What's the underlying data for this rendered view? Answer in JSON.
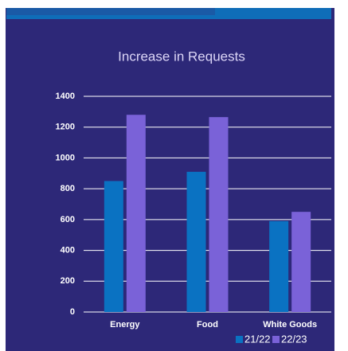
{
  "chart_data": {
    "type": "bar",
    "title": "Increase in Requests",
    "categories": [
      "Energy",
      "Food",
      "White Goods"
    ],
    "series": [
      {
        "name": "21/22",
        "color": "#0a72c2",
        "values": [
          850,
          910,
          590
        ]
      },
      {
        "name": "22/23",
        "color": "#7a62d8",
        "values": [
          1280,
          1265,
          650
        ]
      }
    ],
    "ylim": [
      0,
      1400
    ],
    "yticks": [
      0,
      200,
      400,
      600,
      800,
      1000,
      1200,
      1400
    ],
    "grid": true
  }
}
